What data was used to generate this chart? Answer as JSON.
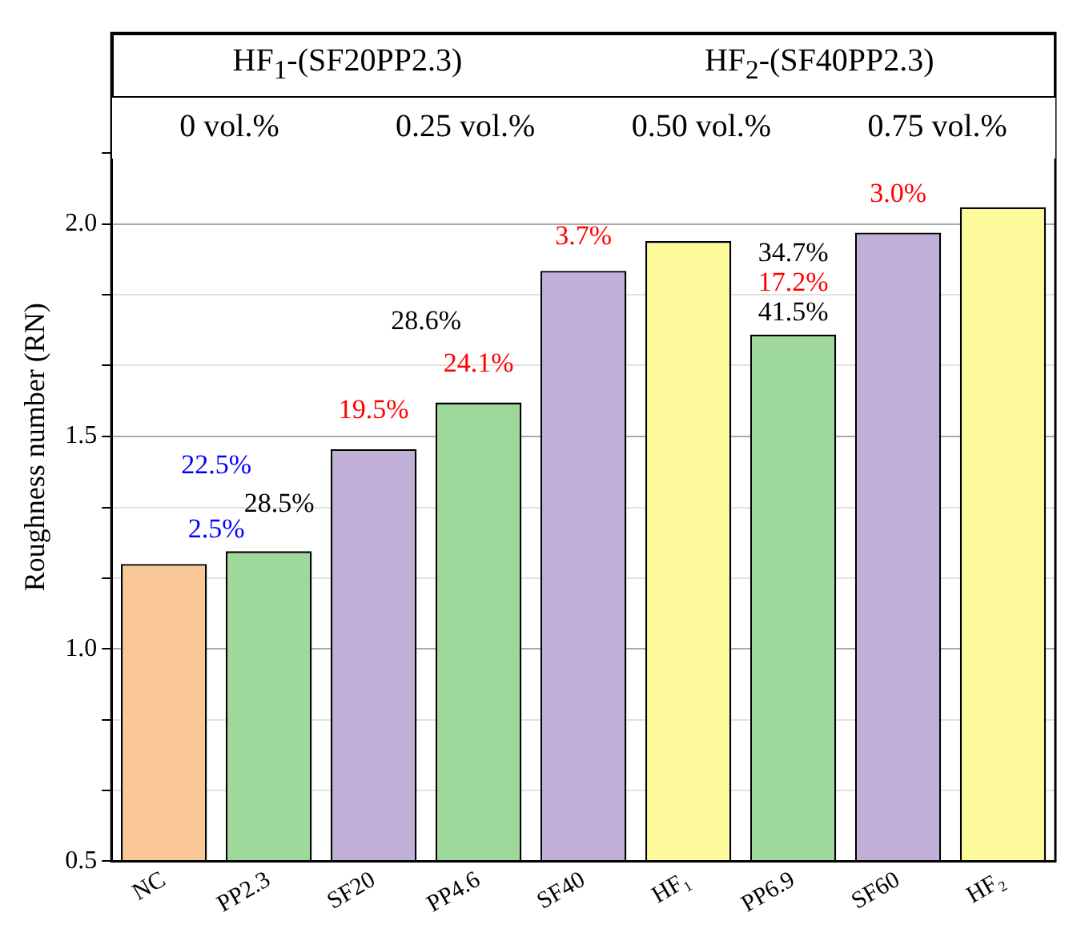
{
  "chart_data": {
    "type": "bar",
    "ylabel": "Roughness number (RN)",
    "categories": [
      "NC",
      "PP2.3",
      "SF20",
      "PP4.6",
      "SF40",
      "HF₁",
      "PP6.9",
      "SF60",
      "HF₂"
    ],
    "values": [
      1.2,
      1.23,
      1.47,
      1.58,
      1.89,
      1.96,
      1.74,
      1.98,
      2.04
    ],
    "colors": [
      "#f9c896",
      "#9ed89b",
      "#c0b0d8",
      "#9ed89b",
      "#c0b0d8",
      "#fdfa9c",
      "#9ed89b",
      "#c0b0d8",
      "#fdfa9c"
    ],
    "ylim": [
      0.5,
      2.45
    ],
    "yticks": [
      {
        "value": 0.5,
        "label": "0.5"
      },
      {
        "value": 0.667,
        "label": null
      },
      {
        "value": 0.833,
        "label": null
      },
      {
        "value": 1.0,
        "label": "1.0"
      },
      {
        "value": 1.167,
        "label": null
      },
      {
        "value": 1.333,
        "label": null
      },
      {
        "value": 1.5,
        "label": "1.5"
      },
      {
        "value": 1.667,
        "label": null
      },
      {
        "value": 1.833,
        "label": null
      },
      {
        "value": 2.0,
        "label": "2.0"
      },
      {
        "value": 2.167,
        "label": null
      }
    ],
    "grid": "y",
    "annotations": [
      "HF$_{1}$-(SF20PP2.3)",
      "HF$_{2}$-(SF40PP2.3)",
      "0 vol.%",
      "0.25 vol.%",
      "0.50 vol.%",
      "0.75 vol.%",
      "22.5%",
      "2.5%",
      "19.5%",
      "28.6%",
      "28.5%",
      "24.1%",
      "3.7%",
      "41.5%",
      "17.2%",
      "34.7%",
      "3.0%"
    ]
  }
}
